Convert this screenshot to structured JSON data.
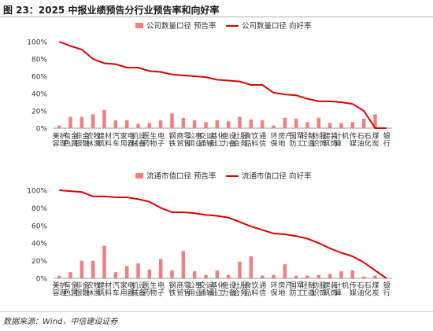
{
  "figure": {
    "title": "图 23：2025 中报业绩预告分行业预告率和向好率",
    "source": "数据来源：Wind，中信建设证券"
  },
  "colors": {
    "bar": "#f08080",
    "line": "#e00000",
    "axis": "#999999",
    "text": "#333333"
  },
  "chart_data": [
    {
      "type": "bar",
      "categories": [
        "美容护理",
        "有色金属",
        "非银金融",
        "农林牧渔",
        "建筑材料",
        "汽车",
        "家用电器",
        "机械设备",
        "医药生物",
        "电子",
        "钢铁",
        "商贸零售",
        "公用事业",
        "交通运输",
        "基础化工",
        "电力设备",
        "社会服务",
        "食品饮料",
        "通信",
        "环保",
        "房地产",
        "国防军工",
        "轻工制造",
        "纺织服饰",
        "建筑装饰",
        "计算机",
        "传媒",
        "石油石化",
        "煤炭",
        "银行"
      ],
      "series": [
        {
          "name": "公司数量口径 预告率",
          "kind": "bar",
          "values": [
            3,
            13,
            13,
            16,
            21,
            9,
            9,
            5,
            6,
            9,
            17,
            12,
            9,
            7,
            9,
            8,
            13,
            10,
            9,
            3,
            12,
            11,
            7,
            12,
            6,
            6,
            7,
            11,
            16,
            0
          ]
        },
        {
          "name": "公司数量口径 向好率",
          "kind": "line",
          "values": [
            100,
            95,
            91,
            80,
            75,
            74,
            70,
            70,
            66,
            65,
            62,
            61,
            60,
            59,
            56,
            55,
            54,
            50,
            50,
            41,
            39,
            38,
            34,
            31,
            31,
            30,
            28,
            20,
            0,
            0
          ]
        }
      ],
      "ylim": [
        0,
        100
      ],
      "yticks": [
        "0%",
        "20%",
        "40%",
        "60%",
        "80%",
        "100%"
      ],
      "legend_position": "top"
    },
    {
      "type": "bar",
      "categories": [
        "美容护理",
        "有色金属",
        "非银金融",
        "农林牧渔",
        "建筑材料",
        "汽车",
        "家用电器",
        "机械设备",
        "医药生物",
        "电子",
        "钢铁",
        "商贸零售",
        "公用事业",
        "交通运输",
        "基础化工",
        "电力设备",
        "社会服务",
        "食品饮料",
        "通信",
        "环保",
        "房地产",
        "国防军工",
        "轻工制造",
        "纺织服饰",
        "建筑装饰",
        "计算机",
        "传媒",
        "石油石化",
        "煤炭",
        "银行"
      ],
      "series": [
        {
          "name": "流通市值口径 预告率",
          "kind": "bar",
          "values": [
            3,
            7,
            20,
            20,
            37,
            7,
            14,
            17,
            10,
            22,
            9,
            31,
            8,
            4,
            9,
            4,
            19,
            25,
            3,
            4,
            16,
            3,
            3,
            4,
            5,
            8,
            9,
            2,
            3,
            0
          ]
        },
        {
          "name": "流通市值口径 向好率",
          "kind": "line",
          "values": [
            100,
            99,
            98,
            93,
            93,
            92,
            92,
            90,
            87,
            80,
            75,
            75,
            74,
            72,
            71,
            69,
            64,
            59,
            55,
            51,
            50,
            48,
            45,
            40,
            34,
            29,
            25,
            18,
            9,
            0
          ]
        }
      ],
      "ylim": [
        0,
        100
      ],
      "yticks": [
        "0%",
        "20%",
        "40%",
        "60%",
        "80%",
        "100%"
      ],
      "legend_position": "top"
    }
  ]
}
